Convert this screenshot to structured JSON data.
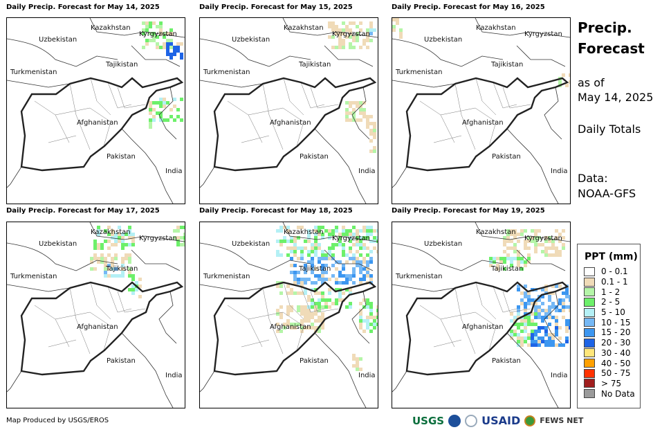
{
  "panels": [
    {
      "title": "Daily Precip. Forecast for May 14, 2025"
    },
    {
      "title": "Daily Precip. Forecast for May 15, 2025"
    },
    {
      "title": "Daily Precip. Forecast for May 16, 2025"
    },
    {
      "title": "Daily Precip. Forecast for May 17, 2025"
    },
    {
      "title": "Daily Precip. Forecast for May 18, 2025"
    },
    {
      "title": "Daily Precip. Forecast for May 19, 2025"
    }
  ],
  "countries": {
    "uzbekistan": "Uzbekistan",
    "kazakhstan": "Kazakhstan",
    "kyrgyzstan": "Kyrgyzstan",
    "tajikistan": "Tajikistan",
    "turkmenistan": "Turkmenistan",
    "afghanistan": "Afghanistan",
    "pakistan": "Pakistan",
    "india": "India"
  },
  "side": {
    "title1": "Precip.",
    "title2": "Forecast",
    "asof": "as of",
    "date": "May 14, 2025",
    "totals": "Daily Totals",
    "data_label": "Data:",
    "source": "NOAA-GFS"
  },
  "legend": {
    "title": "PPT (mm)",
    "items": [
      {
        "label": "0 - 0.1",
        "color": "#ffffff"
      },
      {
        "label": "0.1 - 1",
        "color": "#f0dbb8"
      },
      {
        "label": "1 - 2",
        "color": "#b5f5a8"
      },
      {
        "label": "2 - 5",
        "color": "#6df06a"
      },
      {
        "label": "5 - 10",
        "color": "#b4f0f5"
      },
      {
        "label": "10 - 15",
        "color": "#75b8f5"
      },
      {
        "label": "15 - 20",
        "color": "#3c96f0"
      },
      {
        "label": "20 - 30",
        "color": "#1e64e6"
      },
      {
        "label": "30 - 40",
        "color": "#ffe67a"
      },
      {
        "label": "40 - 50",
        "color": "#ffa000"
      },
      {
        "label": "50 - 75",
        "color": "#ff3200"
      },
      {
        "label": "> 75",
        "color": "#a01e1e"
      },
      {
        "label": "No Data",
        "color": "#9a9a9a"
      }
    ]
  },
  "footer": {
    "credit": "Map Produced by USGS/EROS",
    "logos": {
      "usgs": "USGS",
      "usaid": "USAID",
      "fews": "FEWS NET"
    }
  }
}
